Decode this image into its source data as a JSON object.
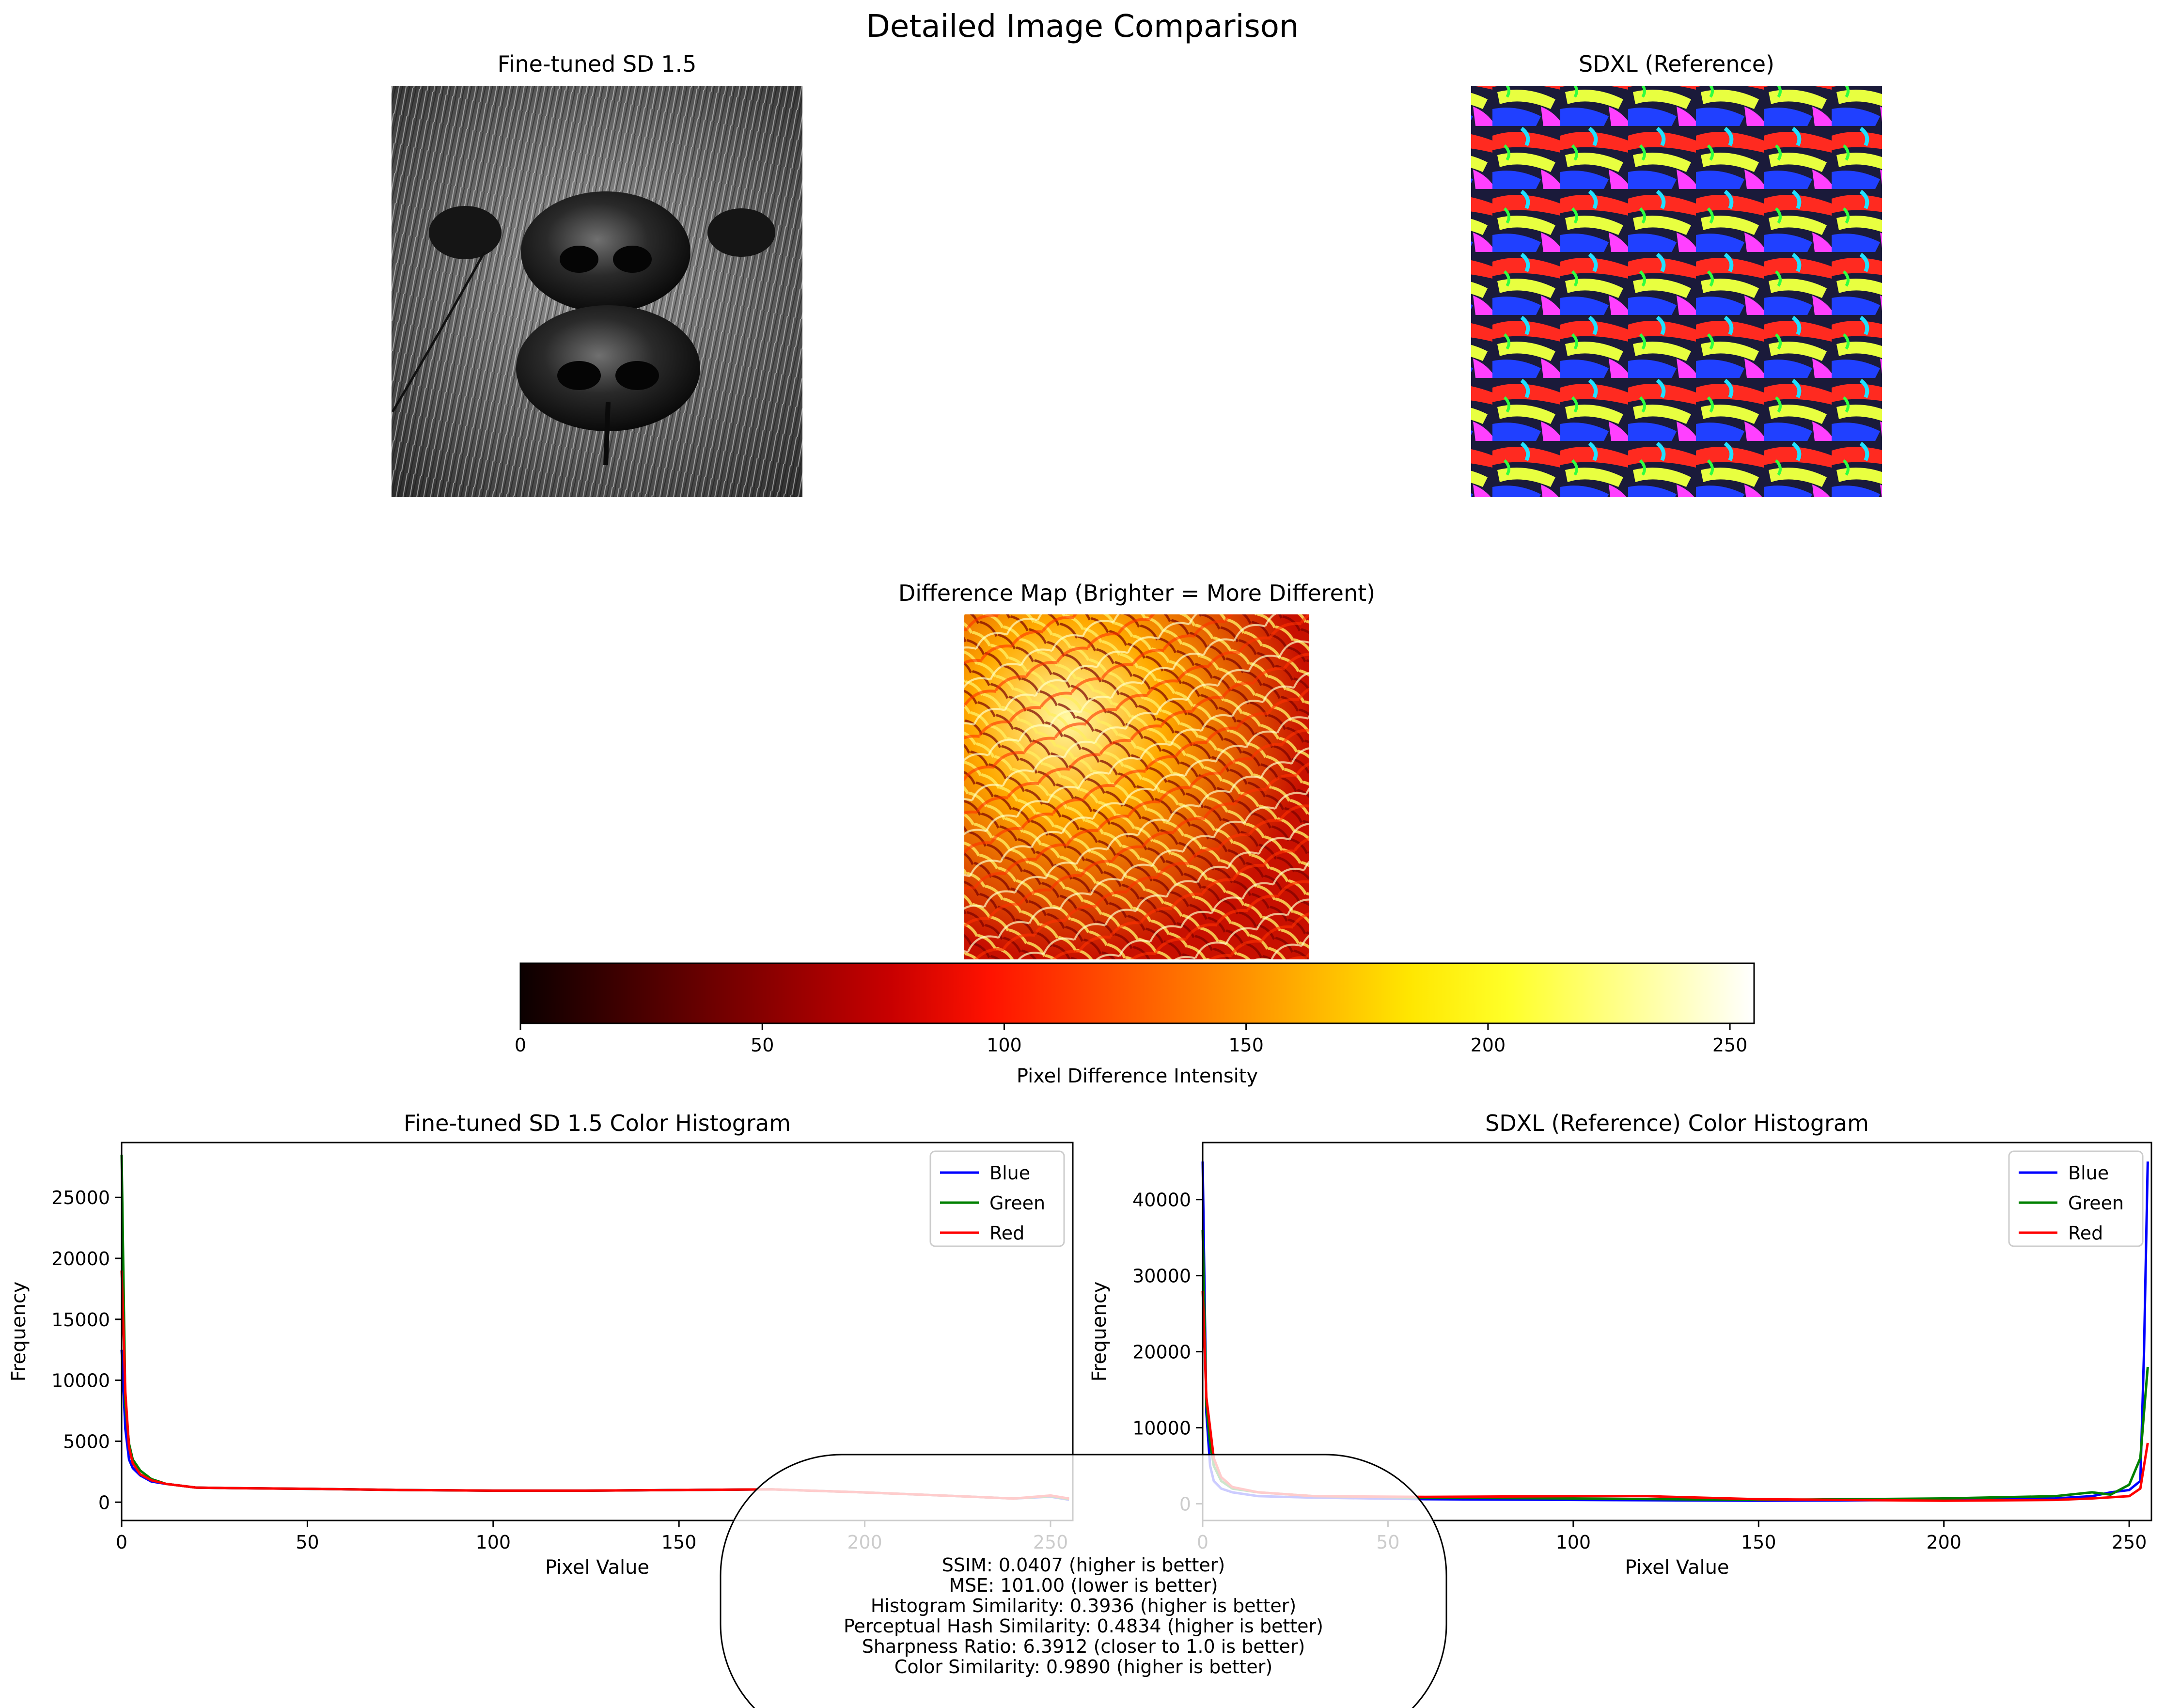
{
  "figure": {
    "suptitle": "Detailed Image Comparison"
  },
  "panels": {
    "left_image_title": "Fine-tuned SD 1.5",
    "right_image_title": "SDXL (Reference)",
    "diff_title": "Difference Map (Brighter = More Different)"
  },
  "colorbar": {
    "label": "Pixel Difference Intensity",
    "range": [
      0,
      255
    ],
    "ticks": [
      0,
      50,
      100,
      150,
      200,
      250
    ],
    "colormap": "hot"
  },
  "metrics": [
    "SSIM: 0.0407 (higher is better)",
    "MSE: 101.00 (lower is better)",
    "Histogram Similarity: 0.3936 (higher is better)",
    "Perceptual Hash Similarity: 0.4834 (higher is better)",
    "Sharpness Ratio: 6.3912 (closer to 1.0 is better)",
    "Color Similarity: 0.9890 (higher is better)"
  ],
  "colors": {
    "blue": "#0000ff",
    "green": "#008000",
    "red": "#ff0000"
  },
  "chart_data": [
    {
      "type": "line",
      "title": "Fine-tuned SD 1.5 Color Histogram",
      "xlabel": "Pixel Value",
      "ylabel": "Frequency",
      "xlim": [
        0,
        256
      ],
      "ylim": [
        -1500,
        29500
      ],
      "xticks": [
        0,
        50,
        100,
        150,
        200,
        250
      ],
      "yticks": [
        0,
        5000,
        10000,
        15000,
        20000,
        25000
      ],
      "legend": "upper-right",
      "series": [
        {
          "name": "Blue",
          "color": "#0000ff",
          "points": [
            [
              0,
              12500
            ],
            [
              1,
              6000
            ],
            [
              2,
              3500
            ],
            [
              3,
              2800
            ],
            [
              5,
              2200
            ],
            [
              8,
              1700
            ],
            [
              12,
              1500
            ],
            [
              20,
              1200
            ],
            [
              30,
              1150
            ],
            [
              50,
              1100
            ],
            [
              75,
              1000
            ],
            [
              100,
              950
            ],
            [
              125,
              950
            ],
            [
              150,
              1000
            ],
            [
              175,
              1050
            ],
            [
              200,
              800
            ],
            [
              225,
              500
            ],
            [
              240,
              300
            ],
            [
              250,
              450
            ],
            [
              255,
              200
            ]
          ]
        },
        {
          "name": "Green",
          "color": "#008000",
          "points": [
            [
              0,
              28500
            ],
            [
              1,
              8000
            ],
            [
              2,
              4800
            ],
            [
              3,
              3500
            ],
            [
              5,
              2600
            ],
            [
              8,
              1900
            ],
            [
              12,
              1500
            ],
            [
              20,
              1200
            ],
            [
              30,
              1150
            ],
            [
              50,
              1100
            ],
            [
              75,
              1000
            ],
            [
              100,
              950
            ],
            [
              125,
              950
            ],
            [
              150,
              1000
            ],
            [
              175,
              1050
            ],
            [
              200,
              800
            ],
            [
              225,
              500
            ],
            [
              240,
              300
            ],
            [
              250,
              500
            ],
            [
              255,
              250
            ]
          ]
        },
        {
          "name": "Red",
          "color": "#ff0000",
          "points": [
            [
              0,
              19000
            ],
            [
              1,
              9000
            ],
            [
              2,
              4500
            ],
            [
              3,
              3200
            ],
            [
              5,
              2300
            ],
            [
              8,
              1800
            ],
            [
              12,
              1500
            ],
            [
              20,
              1200
            ],
            [
              30,
              1150
            ],
            [
              50,
              1100
            ],
            [
              75,
              1000
            ],
            [
              100,
              950
            ],
            [
              125,
              950
            ],
            [
              150,
              1000
            ],
            [
              175,
              1050
            ],
            [
              200,
              800
            ],
            [
              225,
              500
            ],
            [
              240,
              300
            ],
            [
              250,
              550
            ],
            [
              255,
              300
            ]
          ]
        }
      ]
    },
    {
      "type": "line",
      "title": "SDXL (Reference) Color Histogram",
      "xlabel": "Pixel Value",
      "ylabel": "Frequency",
      "xlim": [
        0,
        256
      ],
      "ylim": [
        -2200,
        47500
      ],
      "xticks": [
        0,
        50,
        100,
        150,
        200,
        250
      ],
      "yticks": [
        0,
        10000,
        20000,
        30000,
        40000
      ],
      "legend": "upper-right",
      "series": [
        {
          "name": "Blue",
          "color": "#0000ff",
          "points": [
            [
              0,
              45000
            ],
            [
              1,
              12000
            ],
            [
              2,
              5000
            ],
            [
              3,
              3000
            ],
            [
              5,
              2000
            ],
            [
              8,
              1500
            ],
            [
              15,
              1000
            ],
            [
              30,
              800
            ],
            [
              60,
              600
            ],
            [
              100,
              500
            ],
            [
              150,
              400
            ],
            [
              200,
              500
            ],
            [
              230,
              700
            ],
            [
              240,
              1000
            ],
            [
              245,
              1500
            ],
            [
              250,
              1800
            ],
            [
              253,
              3000
            ],
            [
              254,
              20000
            ],
            [
              255,
              45000
            ]
          ]
        },
        {
          "name": "Green",
          "color": "#008000",
          "points": [
            [
              0,
              36000
            ],
            [
              1,
              13000
            ],
            [
              2,
              8000
            ],
            [
              3,
              5000
            ],
            [
              5,
              3000
            ],
            [
              8,
              2000
            ],
            [
              15,
              1500
            ],
            [
              30,
              1000
            ],
            [
              60,
              800
            ],
            [
              100,
              700
            ],
            [
              150,
              500
            ],
            [
              200,
              700
            ],
            [
              230,
              1000
            ],
            [
              240,
              1500
            ],
            [
              245,
              1200
            ],
            [
              250,
              2500
            ],
            [
              253,
              6000
            ],
            [
              254,
              12000
            ],
            [
              255,
              18000
            ]
          ]
        },
        {
          "name": "Red",
          "color": "#ff0000",
          "points": [
            [
              0,
              28000
            ],
            [
              1,
              14000
            ],
            [
              2,
              10000
            ],
            [
              3,
              6000
            ],
            [
              5,
              3500
            ],
            [
              8,
              2200
            ],
            [
              15,
              1500
            ],
            [
              30,
              1000
            ],
            [
              60,
              900
            ],
            [
              100,
              1000
            ],
            [
              120,
              1000
            ],
            [
              150,
              600
            ],
            [
              200,
              400
            ],
            [
              230,
              500
            ],
            [
              240,
              700
            ],
            [
              250,
              1000
            ],
            [
              253,
              2000
            ],
            [
              254,
              5000
            ],
            [
              255,
              8000
            ]
          ]
        }
      ]
    }
  ]
}
